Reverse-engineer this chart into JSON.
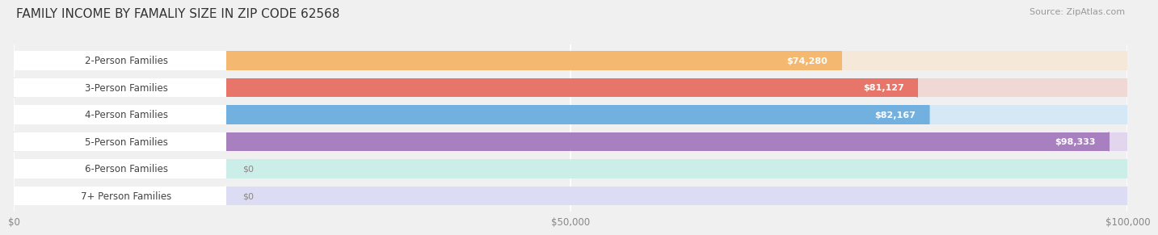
{
  "title": "FAMILY INCOME BY FAMALIY SIZE IN ZIP CODE 62568",
  "source": "Source: ZipAtlas.com",
  "categories": [
    "2-Person Families",
    "3-Person Families",
    "4-Person Families",
    "5-Person Families",
    "6-Person Families",
    "7+ Person Families"
  ],
  "values": [
    74280,
    81127,
    82167,
    98333,
    0,
    0
  ],
  "bar_colors": [
    "#f5b870",
    "#e8756a",
    "#72b0e0",
    "#a880c0",
    "#52c4b4",
    "#9098cc"
  ],
  "bar_bg_colors": [
    "#f5e8d8",
    "#f0d8d5",
    "#d5e8f5",
    "#e2d5ee",
    "#cceee8",
    "#dcddf5"
  ],
  "value_labels": [
    "$74,280",
    "$81,127",
    "$82,167",
    "$98,333",
    "$0",
    "$0"
  ],
  "xlim": [
    0,
    100000
  ],
  "xtick_values": [
    0,
    50000,
    100000
  ],
  "xtick_labels": [
    "$0",
    "$50,000",
    "$100,000"
  ],
  "title_fontsize": 11,
  "label_fontsize": 8.5,
  "value_fontsize": 8.0,
  "source_fontsize": 8,
  "bg_color": "#f0f0f0"
}
